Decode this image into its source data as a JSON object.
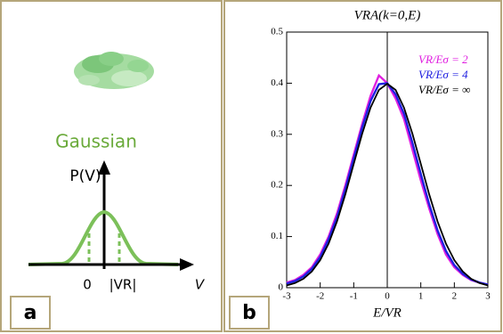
{
  "panel_a": {
    "label": "a",
    "caption": "Gaussian",
    "y_axis_label": "P(V)",
    "x_axis_label": "V",
    "origin_label": "0",
    "width_label": "|VR|"
  },
  "chart_data": {
    "type": "line",
    "panel_label": "b",
    "title": "VRA(k=0,E)",
    "x_label": "E/VR",
    "x": [
      -3,
      -2.75,
      -2.5,
      -2.25,
      -2,
      -1.75,
      -1.5,
      -1.25,
      -1,
      -0.75,
      -0.5,
      -0.25,
      0,
      0.25,
      0.5,
      0.75,
      1,
      1.25,
      1.5,
      1.75,
      2,
      2.25,
      2.5,
      2.75,
      3
    ],
    "series": [
      {
        "name": "VR/Eσ = 2",
        "color": "#e020e0",
        "values": [
          0.01,
          0.015,
          0.025,
          0.04,
          0.065,
          0.1,
          0.145,
          0.2,
          0.26,
          0.32,
          0.375,
          0.415,
          0.4,
          0.37,
          0.33,
          0.27,
          0.21,
          0.155,
          0.105,
          0.065,
          0.04,
          0.025,
          0.015,
          0.01,
          0.006
        ]
      },
      {
        "name": "VR/Eσ = 4",
        "color": "#2020e0",
        "values": [
          0.008,
          0.013,
          0.022,
          0.037,
          0.06,
          0.095,
          0.138,
          0.193,
          0.253,
          0.313,
          0.365,
          0.398,
          0.4,
          0.378,
          0.34,
          0.283,
          0.222,
          0.163,
          0.112,
          0.072,
          0.044,
          0.027,
          0.016,
          0.01,
          0.006
        ]
      },
      {
        "name": "VR/Eσ = ∞",
        "color": "#000000",
        "values": [
          0.0044,
          0.0091,
          0.0175,
          0.0317,
          0.054,
          0.0863,
          0.1295,
          0.1826,
          0.242,
          0.3011,
          0.3521,
          0.3867,
          0.3989,
          0.3867,
          0.3521,
          0.3011,
          0.242,
          0.1826,
          0.1295,
          0.0863,
          0.054,
          0.0317,
          0.0175,
          0.0091,
          0.0044
        ]
      }
    ],
    "xlim": [
      -3,
      3
    ],
    "xticks": [
      -3,
      -2,
      -1,
      0,
      1,
      2,
      3
    ],
    "ylim": [
      0,
      0.5
    ],
    "yticks": [
      0,
      0.1,
      0.2,
      0.3,
      0.4,
      0.5
    ]
  }
}
